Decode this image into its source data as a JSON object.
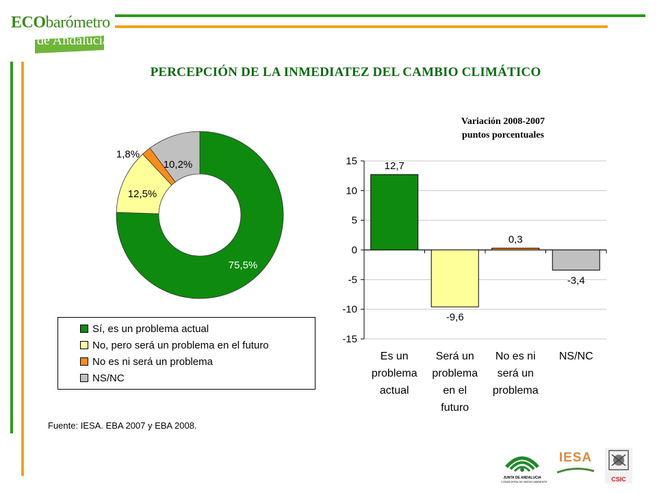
{
  "header": {
    "logo_line1_prefix": "ECO",
    "logo_line1_suffix": "barómetro",
    "logo_line2": "de Andalucía",
    "title": "PERCEPCIÓN DE LA INMEDIATEZ DEL CAMBIO CLIMÁTICO"
  },
  "colors": {
    "green": "#0e8a0e",
    "yellow": "#ffff99",
    "orange": "#ff8c1a",
    "gray": "#c0c0c0",
    "rule_green": "#2e9a1c",
    "rule_orange": "#f2a21b"
  },
  "chart_data": [
    {
      "type": "pie",
      "variant": "donut",
      "slices": [
        {
          "label": "Sí, es un problema actual",
          "value": 75.5,
          "display": "75,5%",
          "color": "#0e8a0e"
        },
        {
          "label": "No, pero será un problema en el futuro",
          "value": 12.5,
          "display": "12,5%",
          "color": "#ffff99"
        },
        {
          "label": "No es ni será un problema",
          "value": 1.8,
          "display": "1,8%",
          "color": "#ff8c1a"
        },
        {
          "label": "NS/NC",
          "value": 10.2,
          "display": "10,2%",
          "color": "#c0c0c0"
        }
      ],
      "legend_position": "bottom"
    },
    {
      "type": "bar",
      "title": "Variación 2008-2007",
      "subtitle": "puntos porcentuales",
      "categories": [
        [
          "Es un",
          "problema",
          "actual"
        ],
        [
          "Será un",
          "problema",
          "en el",
          "futuro"
        ],
        [
          "No es ni",
          "será un",
          "problema"
        ],
        [
          "NS/NC"
        ]
      ],
      "values": [
        12.7,
        -9.6,
        0.3,
        -3.4
      ],
      "labels": [
        "12,7",
        "-9,6",
        "0,3",
        "-3,4"
      ],
      "colors": [
        "#0e8a0e",
        "#ffff99",
        "#ff8c1a",
        "#c0c0c0"
      ],
      "ylim": [
        -15,
        15
      ],
      "yticks": [
        15,
        10,
        5,
        0,
        -5,
        -10,
        -15
      ],
      "grid": true
    }
  ],
  "footer": {
    "source": "Fuente: IESA. EBA 2007 y EBA 2008.",
    "logo_junta_line1": "JUNTA DE ANDALUCIA",
    "logo_junta_line2": "CONSEJERIA DE MEDIO AMBIENTE",
    "logo_iesa": "IESA",
    "logo_csic": "CSIC"
  }
}
